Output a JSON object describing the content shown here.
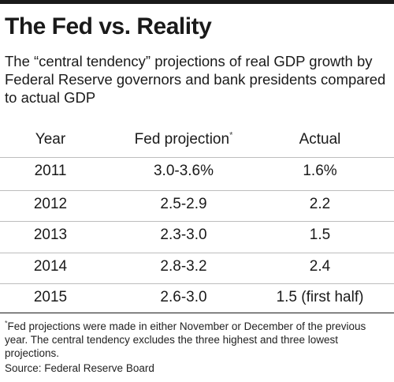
{
  "chart_data": {
    "type": "table",
    "title": "The Fed vs. Reality",
    "subtitle": "The “central tendency” projections of real GDP growth by Federal Reserve governors and bank presidents compared to actual GDP",
    "columns": {
      "year": "Year",
      "projection": "Fed projection",
      "projection_marker": "*",
      "actual": "Actual"
    },
    "rows": [
      {
        "year": "2011",
        "projection": "3.0-3.6%",
        "actual": "1.6%"
      },
      {
        "year": "2012",
        "projection": "2.5-2.9",
        "actual": "2.2"
      },
      {
        "year": "2013",
        "projection": "2.3-3.0",
        "actual": "1.5"
      },
      {
        "year": "2014",
        "projection": "2.8-3.2",
        "actual": "2.4"
      },
      {
        "year": "2015",
        "projection": "2.6-3.0",
        "actual": "1.5 (first half)"
      }
    ],
    "footnote_marker": "*",
    "footnote": "Fed projections were made in either November or December of the previous year. The central tendency excludes the three highest and three lowest projections.",
    "source": "Source: Federal Reserve Board"
  }
}
